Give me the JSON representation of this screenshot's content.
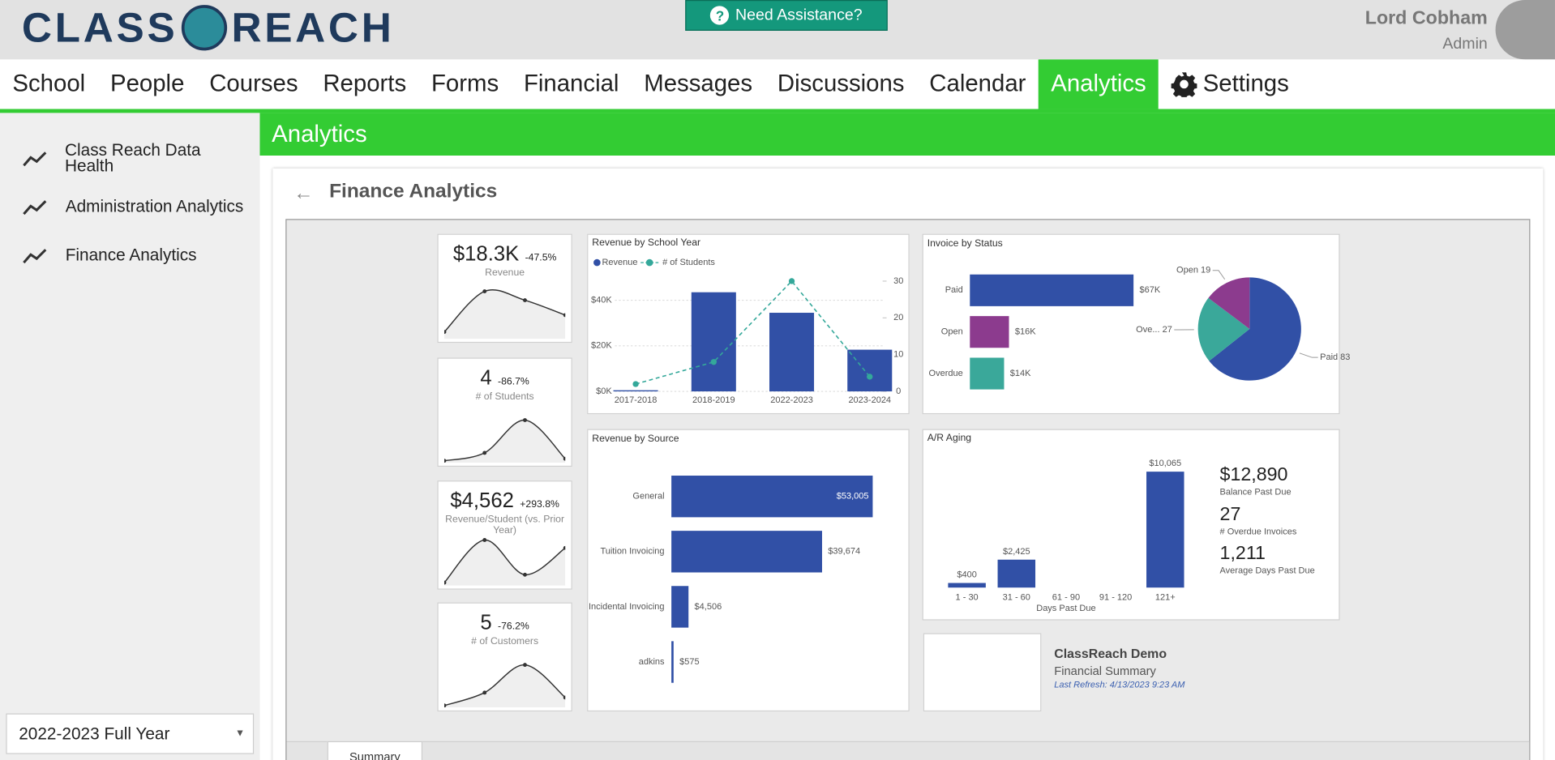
{
  "header": {
    "logo_left": "CLASS",
    "logo_right": "REACH",
    "help": "Need Assistance?",
    "user": "Lord Cobham",
    "role": "Admin"
  },
  "nav": {
    "items": [
      "School",
      "People",
      "Courses",
      "Reports",
      "Forms",
      "Financial",
      "Messages",
      "Discussions",
      "Calendar",
      "Analytics",
      "Settings"
    ],
    "active": 9
  },
  "sidebar": {
    "items": [
      "Class Reach Data Health",
      "Administration Analytics",
      "Finance Analytics"
    ],
    "period": "2022-2023 Full Year"
  },
  "banner": "Analytics",
  "panel": {
    "title": "Finance Analytics",
    "tab": "Summary"
  },
  "kpis": [
    {
      "value": "$18.3K",
      "change": "-47.5%",
      "label": "Revenue",
      "trend": [
        7,
        48,
        39,
        24
      ]
    },
    {
      "value": "4",
      "change": "-86.7%",
      "label": "# of Students",
      "trend": [
        2,
        10,
        43,
        4
      ]
    },
    {
      "value": "$4,562",
      "change": "+293.8%",
      "label": "Revenue/Student (vs. Prior Year)",
      "trend": [
        3,
        46,
        11,
        38
      ]
    },
    {
      "value": "5",
      "change": "-76.2%",
      "label": "# of Customers",
      "trend": [
        2,
        15,
        43,
        10
      ]
    }
  ],
  "chart_data": [
    {
      "type": "combo",
      "title": "Revenue by School Year",
      "categories": [
        "2017-2018",
        "2018-2019",
        "2022-2023",
        "2023-2024"
      ],
      "series": [
        {
          "name": "Revenue",
          "color": "#3150a6",
          "values": [
            500,
            43500,
            34500,
            18300
          ]
        },
        {
          "name": "# of Students",
          "color": "#34a89a",
          "axis": "y2",
          "values": [
            2,
            8,
            30,
            4
          ]
        }
      ],
      "ylim": [
        0,
        50000
      ],
      "yticks": [
        {
          "value": 0,
          "label": "$0K"
        },
        {
          "value": 20000,
          "label": "$20K"
        },
        {
          "value": 40000,
          "label": "$40K"
        }
      ],
      "y2lim": [
        0,
        31
      ],
      "y2ticks": [
        0,
        10,
        20,
        30
      ],
      "grid": true
    },
    {
      "type": "hbar",
      "title": "Invoice by Status",
      "categories": [
        "Paid",
        "Open",
        "Overdue"
      ],
      "values": [
        67000,
        16000,
        14000
      ],
      "value_labels": [
        "$67K",
        "$16K",
        "$14K"
      ],
      "colors": [
        "#3150a6",
        "#8c3b8e",
        "#3aa89a"
      ]
    },
    {
      "type": "pie",
      "categories": [
        "Paid",
        "Overdue",
        "Open"
      ],
      "values": [
        83,
        27,
        19
      ],
      "value_labels": [
        "Paid 83",
        "Ove... 27",
        "Open 19"
      ],
      "colors": [
        "#3150a6",
        "#3aa89a",
        "#8c3b8e"
      ]
    },
    {
      "type": "hbar",
      "title": "Revenue by Source",
      "categories": [
        "General",
        "Tuition Invoicing",
        "Incidental Invoicing",
        "adkins"
      ],
      "values": [
        53005,
        39674,
        4506,
        575
      ],
      "value_labels": [
        "$53,005",
        "$39,674",
        "$4,506",
        "$575"
      ],
      "colors": [
        "#3150a6",
        "#3150a6",
        "#3150a6",
        "#3150a6"
      ]
    },
    {
      "type": "bar",
      "title": "A/R Aging",
      "categories": [
        "1 - 30",
        "31 - 60",
        "61 - 90",
        "91 - 120",
        "121+"
      ],
      "values": [
        400,
        2425,
        null,
        null,
        10065
      ],
      "value_labels": [
        "$400",
        "$2,425",
        null,
        null,
        "$10,065"
      ],
      "color": "#3150a6",
      "xlabel": "Days Past Due",
      "stats": [
        {
          "value": "$12,890",
          "label": "Balance Past Due"
        },
        {
          "value": "27",
          "label": "# Overdue Invoices"
        },
        {
          "value": "1,211",
          "label": "Average Days Past Due"
        }
      ]
    }
  ],
  "info": {
    "title": "ClassReach Demo",
    "subtitle": "Financial Summary",
    "refresh": "Last Refresh: 4/13/2023 9:23 AM"
  }
}
